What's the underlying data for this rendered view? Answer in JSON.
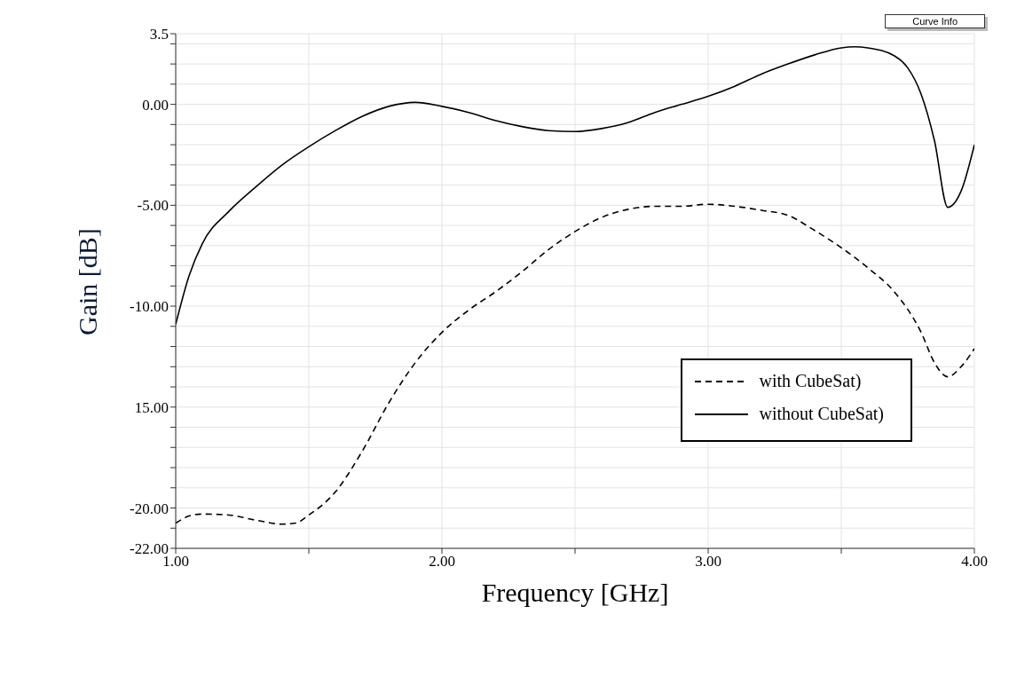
{
  "chart_data": {
    "type": "line",
    "xlabel": "Frequency [GHz]",
    "ylabel": "Gain [dB]",
    "annotations": [
      "Curve Info"
    ],
    "xlim": [
      1,
      4
    ],
    "ylim": [
      -22,
      3.5
    ],
    "xticks": [
      {
        "value": 1,
        "label": "1.00"
      },
      {
        "value": 1.5,
        "label": null
      },
      {
        "value": 2,
        "label": "2.00"
      },
      {
        "value": 2.5,
        "label": null
      },
      {
        "value": 3,
        "label": "3.00"
      },
      {
        "value": 3.5,
        "label": null
      },
      {
        "value": 4,
        "label": "4.00"
      }
    ],
    "yticks": [
      {
        "value": 3.5,
        "label": "3.5"
      },
      {
        "value": 3,
        "label": null
      },
      {
        "value": 2,
        "label": null
      },
      {
        "value": 1,
        "label": null
      },
      {
        "value": 0,
        "label": "0.00"
      },
      {
        "value": -1,
        "label": null
      },
      {
        "value": -2,
        "label": null
      },
      {
        "value": -3,
        "label": null
      },
      {
        "value": -4,
        "label": null
      },
      {
        "value": -5,
        "label": "-5.00"
      },
      {
        "value": -6,
        "label": null
      },
      {
        "value": -7,
        "label": null
      },
      {
        "value": -8,
        "label": null
      },
      {
        "value": -9,
        "label": null
      },
      {
        "value": -10,
        "label": "-10.00"
      },
      {
        "value": -11,
        "label": null
      },
      {
        "value": -12,
        "label": null
      },
      {
        "value": -13,
        "label": null
      },
      {
        "value": -14,
        "label": null
      },
      {
        "value": -15,
        "label": "15.00"
      },
      {
        "value": -16,
        "label": null
      },
      {
        "value": -17,
        "label": null
      },
      {
        "value": -18,
        "label": null
      },
      {
        "value": -19,
        "label": null
      },
      {
        "value": -20,
        "label": "-20.00"
      },
      {
        "value": -21,
        "label": null
      },
      {
        "value": -22,
        "label": "-22.00"
      }
    ],
    "grid": true,
    "legend": "bottom right",
    "marker": "none",
    "series": [
      {
        "name": "with CubeSat)",
        "color": "#000000",
        "line_style": "dashed",
        "x": [
          1,
          1.05,
          1.1,
          1.2,
          1.3,
          1.4,
          1.45,
          1.5,
          1.6,
          1.7,
          1.8,
          1.9,
          2,
          2.1,
          2.2,
          2.3,
          2.4,
          2.5,
          2.6,
          2.7,
          2.8,
          2.9,
          3,
          3.1,
          3.2,
          3.3,
          3.4,
          3.5,
          3.6,
          3.7,
          3.8,
          3.85,
          3.9,
          3.95,
          4
        ],
        "values": [
          -20.75,
          -20.4,
          -20.3,
          -20.35,
          -20.6,
          -20.8,
          -20.75,
          -20.35,
          -19.2,
          -17.2,
          -14.8,
          -12.8,
          -11.3,
          -10.2,
          -9.3,
          -8.3,
          -7.2,
          -6.3,
          -5.6,
          -5.2,
          -5.05,
          -5.05,
          -4.95,
          -5.05,
          -5.25,
          -5.5,
          -6.25,
          -7.1,
          -8.1,
          -9.3,
          -11.3,
          -12.8,
          -13.5,
          -13,
          -12.1
        ]
      },
      {
        "name": "without CubeSat)",
        "color": "#000000",
        "line_style": "solid",
        "x": [
          1,
          1.05,
          1.1,
          1.2,
          1.3,
          1.4,
          1.5,
          1.6,
          1.7,
          1.8,
          1.9,
          2,
          2.1,
          2.2,
          2.3,
          2.4,
          2.5,
          2.6,
          2.7,
          2.8,
          2.9,
          3,
          3.1,
          3.2,
          3.3,
          3.4,
          3.5,
          3.55,
          3.6,
          3.7,
          3.75,
          3.8,
          3.85,
          3.9,
          3.95,
          4
        ],
        "values": [
          -10.9,
          -8.5,
          -6.9,
          -5.3,
          -4.1,
          -3,
          -2.1,
          -1.3,
          -0.6,
          -0.1,
          0.1,
          -0.1,
          -0.4,
          -0.8,
          -1.1,
          -1.3,
          -1.35,
          -1.2,
          -0.9,
          -0.4,
          0,
          0.4,
          0.9,
          1.5,
          2,
          2.45,
          2.8,
          2.85,
          2.8,
          2.4,
          1.8,
          0.5,
          -1.8,
          -5.1,
          -4.3,
          -2
        ]
      }
    ]
  }
}
